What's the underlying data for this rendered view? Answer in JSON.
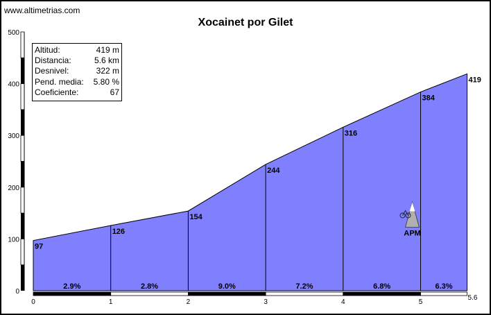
{
  "site": "www.altimetrias.com",
  "stats": [
    {
      "label": "Altitud:",
      "value": "419 m"
    },
    {
      "label": "Distancia:",
      "value": "5.6 km"
    },
    {
      "label": "Desnivel:",
      "value": "322 m"
    },
    {
      "label": "Pend. media:",
      "value": "5.80 %"
    },
    {
      "label": "Coeficiente:",
      "value": "67"
    }
  ],
  "colors": {
    "fill": "#8080ff",
    "outline": "#000000",
    "band_dark": "#000000",
    "band_light": "#ffffff"
  },
  "marker": {
    "icon": "mountain-cyclist-icon",
    "label": "APM",
    "km": 5.0,
    "altitude": 120
  },
  "chart_data": {
    "type": "area",
    "title": "Xocainet por Gilet",
    "x": [
      0,
      1,
      2,
      3,
      4,
      5,
      5.6
    ],
    "y": [
      97,
      126,
      154,
      244,
      316,
      384,
      419
    ],
    "point_labels": [
      "97",
      "126",
      "154",
      "244",
      "316",
      "384",
      "419"
    ],
    "xticks": [
      0,
      1,
      2,
      3,
      4,
      5
    ],
    "x_end_label": "5.6",
    "yticks": [
      0,
      100,
      200,
      300,
      400,
      500
    ],
    "xlim": [
      0,
      5.6
    ],
    "ylim": [
      0,
      500
    ],
    "gradients": [
      "2.9%",
      "2.8%",
      "9.0%",
      "7.2%",
      "6.8%",
      "6.3%"
    ],
    "grid": false
  }
}
